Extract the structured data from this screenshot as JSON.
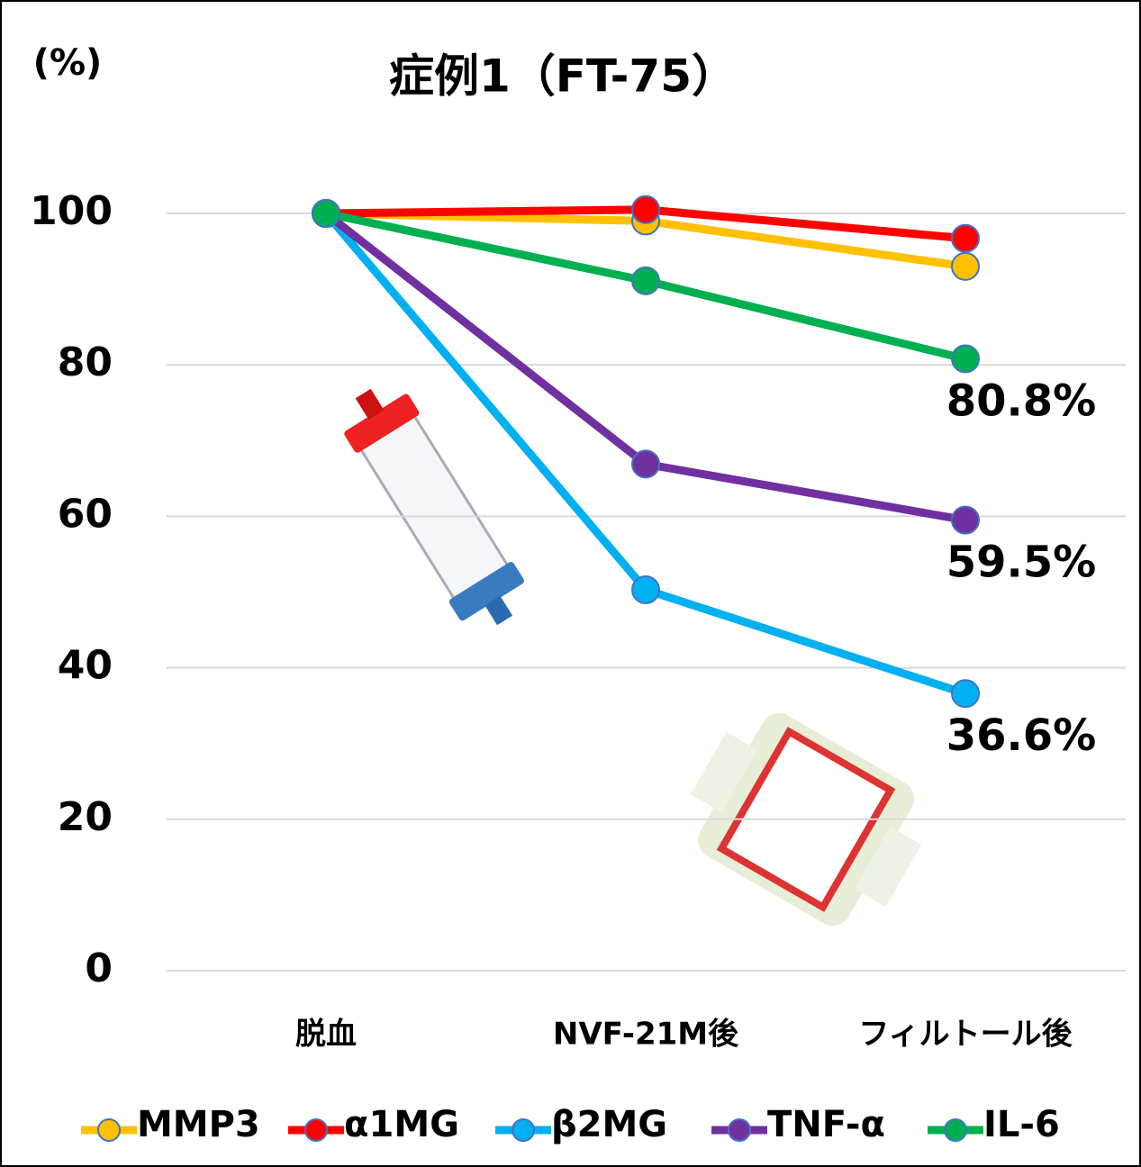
{
  "chart_data": {
    "type": "line",
    "title": "症例1（FT-75）",
    "y_label": "(%)",
    "categories": [
      "脱血",
      "NVF-21M後",
      "フィルトール後"
    ],
    "series": [
      {
        "name": "MMP3",
        "color": "#ffc000",
        "values": [
          100,
          99,
          93
        ]
      },
      {
        "name": "α1MG",
        "color": "#ff0000",
        "values": [
          100,
          100.5,
          96.7
        ]
      },
      {
        "name": "β2MG",
        "color": "#00b0f0",
        "values": [
          100,
          50.3,
          36.6
        ],
        "value_labels": [
          null,
          null,
          "36.6%"
        ]
      },
      {
        "name": "TNF-α",
        "color": "#7030a0",
        "values": [
          100,
          66.9,
          59.5
        ],
        "value_labels": [
          null,
          null,
          "59.5%"
        ]
      },
      {
        "name": "IL-6",
        "color": "#00b050",
        "values": [
          100,
          91.1,
          80.8
        ],
        "value_labels": [
          null,
          null,
          "80.8%"
        ]
      }
    ],
    "ylim": [
      0,
      100
    ],
    "yticks": [
      0,
      20,
      40,
      60,
      80,
      100
    ],
    "grid": true
  }
}
